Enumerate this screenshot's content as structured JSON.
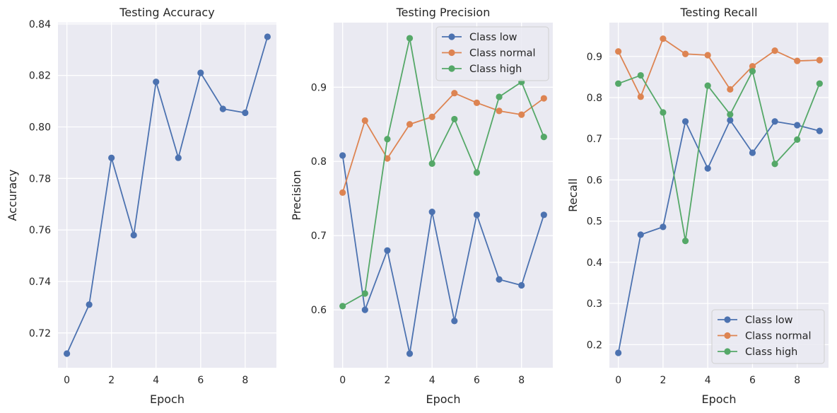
{
  "chart_data": [
    {
      "type": "line",
      "title": "Testing Accuracy",
      "xlabel": "Epoch",
      "ylabel": "Accuracy",
      "x": [
        0,
        1,
        2,
        3,
        4,
        5,
        6,
        7,
        8,
        9
      ],
      "xlim": [
        -0.4,
        9.4
      ],
      "ylim": [
        0.7065,
        0.8405
      ],
      "xticks": [
        0,
        2,
        4,
        6,
        8
      ],
      "yticks": [
        0.72,
        0.74,
        0.76,
        0.78,
        0.8,
        0.82,
        0.84
      ],
      "ytick_labels": [
        "0.72",
        "0.74",
        "0.76",
        "0.78",
        "0.80",
        "0.82",
        "0.84"
      ],
      "grid": true,
      "legend": null,
      "series": [
        {
          "values": [
            0.712,
            0.731,
            0.788,
            0.758,
            0.8175,
            0.788,
            0.821,
            0.807,
            0.8055,
            0.835
          ],
          "color": "#4C72B0"
        }
      ]
    },
    {
      "type": "line",
      "title": "Testing Precision",
      "xlabel": "Epoch",
      "ylabel": "Precision",
      "x": [
        0,
        1,
        2,
        3,
        4,
        5,
        6,
        7,
        8,
        9
      ],
      "xlim": [
        -0.4,
        9.4
      ],
      "ylim": [
        0.522,
        0.987
      ],
      "xticks": [
        0,
        2,
        4,
        6,
        8
      ],
      "yticks": [
        0.6,
        0.7,
        0.8,
        0.9
      ],
      "ytick_labels": [
        "0.6",
        "0.7",
        "0.8",
        "0.9"
      ],
      "grid": true,
      "legend": "top-right",
      "series": [
        {
          "name": "Class low",
          "values": [
            0.808,
            0.6,
            0.68,
            0.541,
            0.732,
            0.585,
            0.728,
            0.641,
            0.633,
            0.728
          ],
          "color": "#4C72B0"
        },
        {
          "name": "Class normal",
          "values": [
            0.758,
            0.855,
            0.804,
            0.85,
            0.86,
            0.892,
            0.879,
            0.868,
            0.863,
            0.885
          ],
          "color": "#DD8452"
        },
        {
          "name": "Class high",
          "values": [
            0.605,
            0.622,
            0.83,
            0.966,
            0.797,
            0.857,
            0.785,
            0.887,
            0.907,
            0.833
          ],
          "color": "#55A868"
        }
      ]
    },
    {
      "type": "line",
      "title": "Testing Recall",
      "xlabel": "Epoch",
      "ylabel": "Recall",
      "x": [
        0,
        1,
        2,
        3,
        4,
        5,
        6,
        7,
        8,
        9
      ],
      "xlim": [
        -0.4,
        9.4
      ],
      "ylim": [
        0.144,
        0.982
      ],
      "xticks": [
        0,
        2,
        4,
        6,
        8
      ],
      "yticks": [
        0.2,
        0.3,
        0.4,
        0.5,
        0.6,
        0.7,
        0.8,
        0.9
      ],
      "ytick_labels": [
        "0.2",
        "0.3",
        "0.4",
        "0.5",
        "0.6",
        "0.7",
        "0.8",
        "0.9"
      ],
      "grid": true,
      "legend": "bottom-right",
      "series": [
        {
          "name": "Class low",
          "values": [
            0.18,
            0.467,
            0.486,
            0.742,
            0.628,
            0.745,
            0.666,
            0.742,
            0.733,
            0.719
          ],
          "color": "#4C72B0"
        },
        {
          "name": "Class normal",
          "values": [
            0.912,
            0.802,
            0.943,
            0.906,
            0.903,
            0.82,
            0.876,
            0.914,
            0.889,
            0.891
          ],
          "color": "#DD8452"
        },
        {
          "name": "Class high",
          "values": [
            0.834,
            0.854,
            0.764,
            0.452,
            0.829,
            0.759,
            0.864,
            0.639,
            0.698,
            0.834
          ],
          "color": "#55A868"
        }
      ]
    }
  ]
}
